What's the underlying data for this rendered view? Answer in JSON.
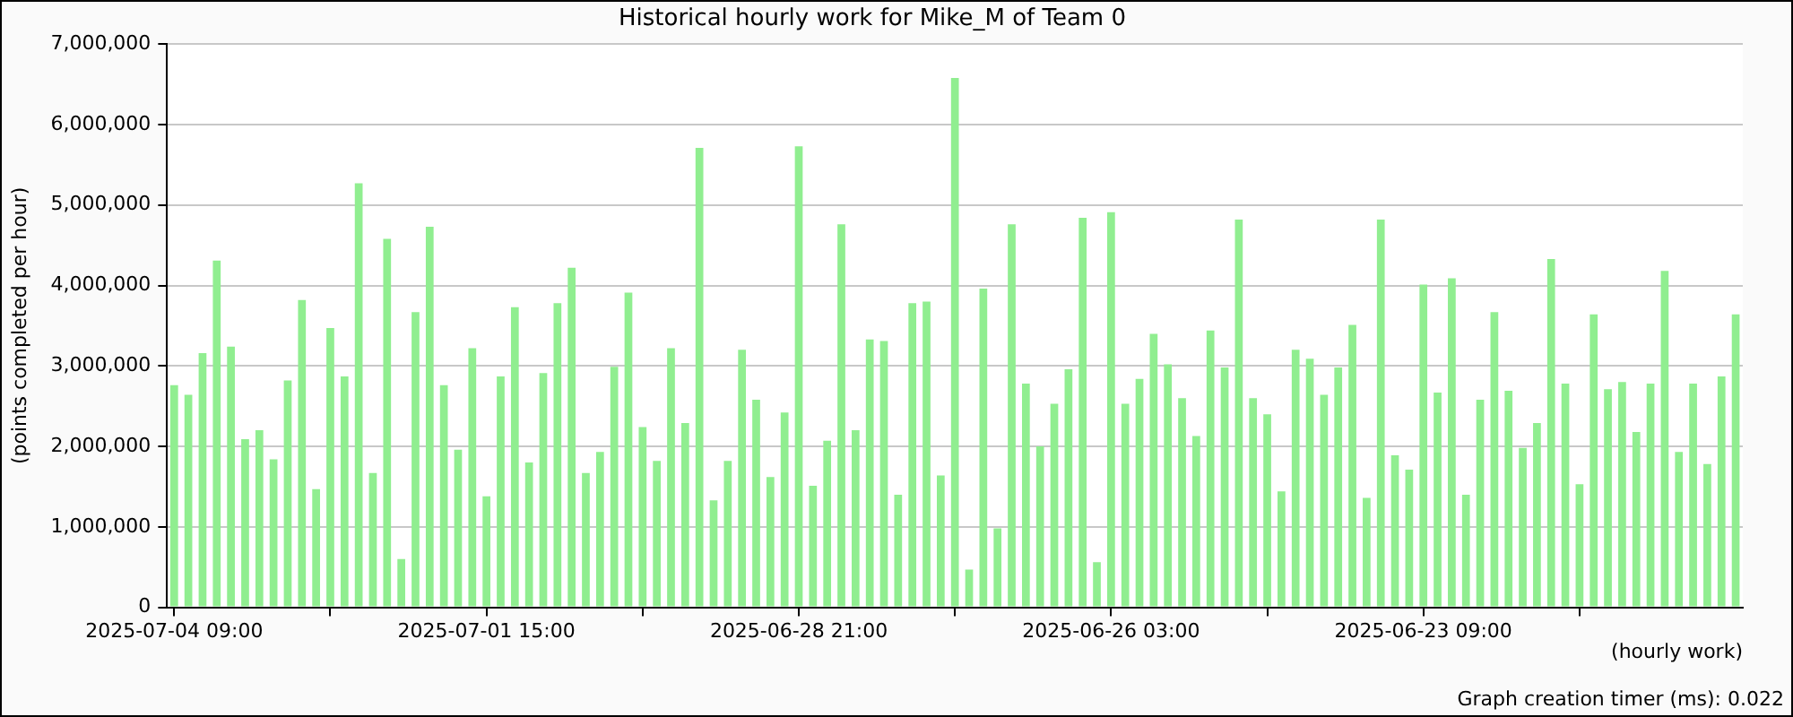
{
  "chart_data": {
    "type": "bar",
    "title": "Historical hourly work for Mike_M of Team 0",
    "xlabel": "(hourly work)",
    "ylabel": "(points completed per hour)",
    "annotations": [
      "Graph creation timer (ms): 0.022"
    ],
    "x": [
      "2025-07-04T09:00",
      "2025-07-04T06:00",
      "2025-07-04T03:00",
      "2025-07-04T00:00",
      "2025-07-03T21:00",
      "2025-07-03T18:00",
      "2025-07-03T15:00",
      "2025-07-03T12:00",
      "2025-07-03T09:00",
      "2025-07-03T06:00",
      "2025-07-03T03:00",
      "2025-07-03T00:00",
      "2025-07-02T21:00",
      "2025-07-02T18:00",
      "2025-07-02T15:00",
      "2025-07-02T12:00",
      "2025-07-02T09:00",
      "2025-07-02T06:00",
      "2025-07-02T03:00",
      "2025-07-02T00:00",
      "2025-07-01T21:00",
      "2025-07-01T18:00",
      "2025-07-01T15:00",
      "2025-07-01T12:00",
      "2025-07-01T09:00",
      "2025-07-01T06:00",
      "2025-07-01T03:00",
      "2025-07-01T00:00",
      "2025-06-30T21:00",
      "2025-06-30T18:00",
      "2025-06-30T15:00",
      "2025-06-30T12:00",
      "2025-06-30T09:00",
      "2025-06-30T06:00",
      "2025-06-30T03:00",
      "2025-06-30T00:00",
      "2025-06-29T21:00",
      "2025-06-29T18:00",
      "2025-06-29T15:00",
      "2025-06-29T12:00",
      "2025-06-29T09:00",
      "2025-06-29T06:00",
      "2025-06-29T03:00",
      "2025-06-29T00:00",
      "2025-06-28T21:00",
      "2025-06-28T18:00",
      "2025-06-28T15:00",
      "2025-06-28T12:00",
      "2025-06-28T09:00",
      "2025-06-28T06:00",
      "2025-06-28T03:00",
      "2025-06-28T00:00",
      "2025-06-27T21:00",
      "2025-06-27T18:00",
      "2025-06-27T15:00",
      "2025-06-27T12:00",
      "2025-06-27T09:00",
      "2025-06-27T06:00",
      "2025-06-27T03:00",
      "2025-06-27T00:00",
      "2025-06-26T21:00",
      "2025-06-26T18:00",
      "2025-06-26T15:00",
      "2025-06-26T12:00",
      "2025-06-26T09:00",
      "2025-06-26T06:00",
      "2025-06-26T03:00",
      "2025-06-26T00:00",
      "2025-06-25T21:00",
      "2025-06-25T18:00",
      "2025-06-25T15:00",
      "2025-06-25T12:00",
      "2025-06-25T09:00",
      "2025-06-25T06:00",
      "2025-06-25T03:00",
      "2025-06-25T00:00",
      "2025-06-24T21:00",
      "2025-06-24T18:00",
      "2025-06-24T15:00",
      "2025-06-24T12:00",
      "2025-06-24T09:00",
      "2025-06-24T06:00",
      "2025-06-24T03:00",
      "2025-06-24T00:00",
      "2025-06-23T21:00",
      "2025-06-23T18:00",
      "2025-06-23T15:00",
      "2025-06-23T12:00",
      "2025-06-23T09:00",
      "2025-06-23T06:00",
      "2025-06-23T03:00",
      "2025-06-23T00:00",
      "2025-06-22T21:00",
      "2025-06-22T18:00",
      "2025-06-22T15:00",
      "2025-06-22T12:00",
      "2025-06-22T09:00",
      "2025-06-22T06:00",
      "2025-06-22T03:00",
      "2025-06-22T00:00",
      "2025-06-21T21:00",
      "2025-06-21T18:00",
      "2025-06-21T15:00",
      "2025-06-21T12:00",
      "2025-06-21T09:00",
      "2025-06-21T06:00",
      "2025-06-21T03:00",
      "2025-06-21T00:00",
      "2025-06-20T21:00",
      "2025-06-20T18:00",
      "2025-06-20T15:00"
    ],
    "values": [
      2760000,
      2640000,
      3160000,
      4310000,
      3240000,
      2090000,
      2200000,
      1840000,
      2820000,
      3820000,
      1470000,
      3470000,
      2870000,
      5270000,
      1670000,
      4580000,
      600000,
      3670000,
      4730000,
      2760000,
      1960000,
      3220000,
      1380000,
      2870000,
      3730000,
      1800000,
      2910000,
      3780000,
      4220000,
      1670000,
      1930000,
      2990000,
      3910000,
      2240000,
      1820000,
      3220000,
      2290000,
      5710000,
      1330000,
      1820000,
      3200000,
      2580000,
      1620000,
      2420000,
      5730000,
      1510000,
      2070000,
      4760000,
      2200000,
      3330000,
      3310000,
      1400000,
      3780000,
      3800000,
      1640000,
      6580000,
      470000,
      3960000,
      980000,
      4760000,
      2780000,
      2000000,
      2530000,
      2960000,
      4840000,
      560000,
      4910000,
      2530000,
      2840000,
      3400000,
      3020000,
      2600000,
      2130000,
      3440000,
      2980000,
      4820000,
      2600000,
      2400000,
      1440000,
      3200000,
      3090000,
      2640000,
      2980000,
      3510000,
      1360000,
      4820000,
      1890000,
      1710000,
      4010000,
      2670000,
      4090000,
      1400000,
      2580000,
      3670000,
      2690000,
      1980000,
      2290000,
      4330000,
      2780000,
      1530000,
      3640000,
      2710000,
      2800000,
      2180000,
      2780000,
      4180000,
      1930000,
      2780000,
      1780000,
      2870000,
      3640000
    ],
    "color": "#90ee90",
    "xlim": [
      "2025-07-04T10:30",
      "2025-06-20T13:30"
    ],
    "xticks": [
      {
        "value": "2025-07-04T09:00",
        "label": "2025-07-04 09:00"
      },
      {
        "value": "2025-07-03T00:00",
        "label": null
      },
      {
        "value": "2025-07-01T15:00",
        "label": "2025-07-01 15:00"
      },
      {
        "value": "2025-06-30T06:00",
        "label": null
      },
      {
        "value": "2025-06-28T21:00",
        "label": "2025-06-28 21:00"
      },
      {
        "value": "2025-06-27T12:00",
        "label": null
      },
      {
        "value": "2025-06-26T03:00",
        "label": "2025-06-26 03:00"
      },
      {
        "value": "2025-06-24T18:00",
        "label": null
      },
      {
        "value": "2025-06-23T09:00",
        "label": "2025-06-23 09:00"
      },
      {
        "value": "2025-06-22T00:00",
        "label": null
      }
    ],
    "ylim": [
      0,
      7000000
    ],
    "yticks": [
      {
        "value": 0,
        "label": "0"
      },
      {
        "value": 1000000,
        "label": "1,000,000"
      },
      {
        "value": 2000000,
        "label": "2,000,000"
      },
      {
        "value": 3000000,
        "label": "3,000,000"
      },
      {
        "value": 4000000,
        "label": "4,000,000"
      },
      {
        "value": 5000000,
        "label": "5,000,000"
      },
      {
        "value": 6000000,
        "label": "6,000,000"
      },
      {
        "value": 7000000,
        "label": "7,000,000"
      }
    ],
    "grid": "y",
    "legend": false
  }
}
